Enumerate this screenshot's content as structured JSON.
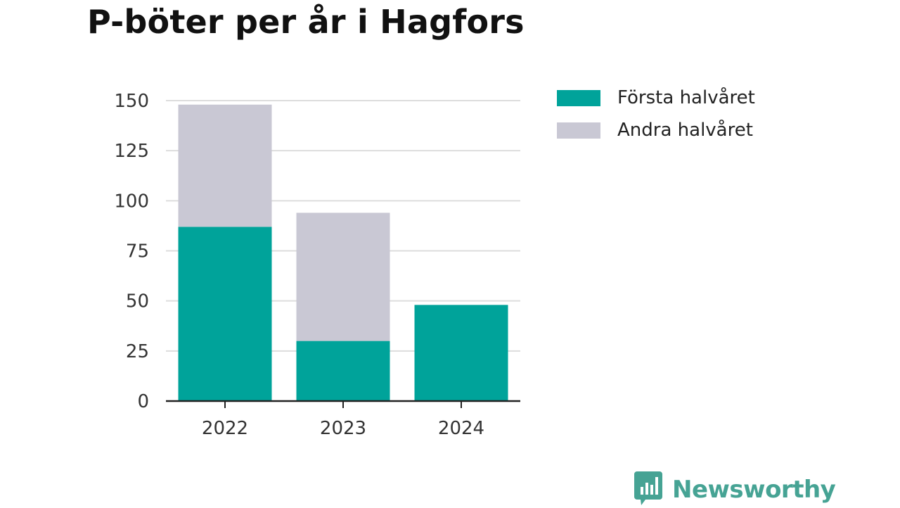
{
  "title": "P-böter per år i Hagfors",
  "colors": {
    "first_half": "#00a39a",
    "second_half": "#c9c8d4",
    "gridline": "#dddddd",
    "axis": "#222222",
    "brand": "#46a394"
  },
  "legend": {
    "items": [
      {
        "label": "Första halvåret",
        "color": "#00a39a"
      },
      {
        "label": "Andra halvåret",
        "color": "#c9c8d4"
      }
    ]
  },
  "brand": {
    "name": "Newsworthy",
    "icon": "newsworthy-logo-icon"
  },
  "chart_data": {
    "type": "bar",
    "stacked": true,
    "categories": [
      "2022",
      "2023",
      "2024"
    ],
    "series": [
      {
        "name": "Första halvåret",
        "values": [
          87,
          30,
          48
        ]
      },
      {
        "name": "Andra halvåret",
        "values": [
          61,
          64,
          0
        ]
      }
    ],
    "ylim": [
      0,
      150
    ],
    "yticks": [
      0,
      25,
      50,
      75,
      100,
      125,
      150
    ],
    "grid": true,
    "legend_position": "right",
    "xlabel": "",
    "ylabel": ""
  }
}
